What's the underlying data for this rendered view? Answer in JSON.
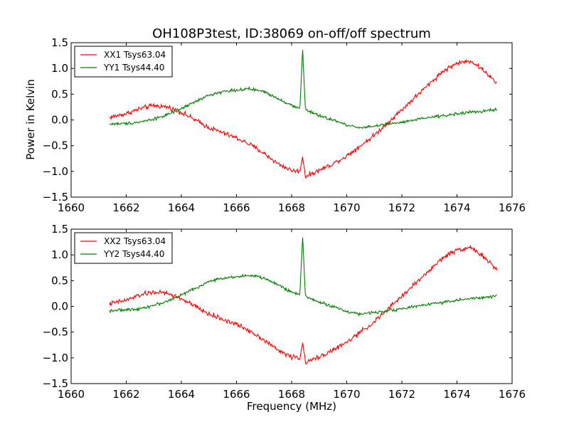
{
  "figure": {
    "title": "OH108P3test, ID:38069 on-off/off spectrum",
    "xlabel": "Frequency (MHz)",
    "ylabel": "Power in Kelvin",
    "colors": {
      "red": "#ff0000",
      "green": "#008000",
      "axes": "#000000",
      "background": "#ffffff"
    }
  },
  "chart_data": [
    {
      "type": "line",
      "title": "OH108P3test, ID:38069 on-off/off spectrum",
      "xlabel": "",
      "ylabel": "Power in Kelvin",
      "xlim": [
        1660,
        1676
      ],
      "ylim": [
        -1.5,
        1.5
      ],
      "xticks": [
        "1660",
        "1662",
        "1664",
        "1666",
        "1668",
        "1670",
        "1672",
        "1674",
        "1676"
      ],
      "yticks": [
        "1.5",
        "1.0",
        "0.5",
        "0.0",
        "−0.5",
        "−1.0",
        "−1.5"
      ],
      "legend_position": "top-left",
      "x": [
        1661.4,
        1662.0,
        1662.5,
        1663.0,
        1663.5,
        1664.0,
        1664.5,
        1665.0,
        1665.5,
        1666.0,
        1666.5,
        1667.0,
        1667.5,
        1668.0,
        1668.3,
        1668.4,
        1668.5,
        1668.7,
        1669.0,
        1669.5,
        1670.0,
        1670.5,
        1671.0,
        1671.5,
        1672.0,
        1672.5,
        1673.0,
        1673.5,
        1674.0,
        1674.5,
        1675.0,
        1675.45
      ],
      "series": [
        {
          "name": "XX1 Tsys63.04",
          "color": "#ff0000",
          "values": [
            0.05,
            0.12,
            0.22,
            0.28,
            0.25,
            0.15,
            0.0,
            -0.15,
            -0.25,
            -0.35,
            -0.48,
            -0.65,
            -0.85,
            -0.98,
            -1.0,
            -0.7,
            -1.1,
            -1.05,
            -0.98,
            -0.85,
            -0.7,
            -0.5,
            -0.3,
            -0.05,
            0.2,
            0.45,
            0.7,
            0.95,
            1.1,
            1.15,
            0.95,
            0.7
          ]
        },
        {
          "name": "YY1 Tsys44.40",
          "color": "#008000",
          "values": [
            -0.08,
            -0.07,
            -0.04,
            0.02,
            0.1,
            0.22,
            0.35,
            0.48,
            0.55,
            0.58,
            0.6,
            0.55,
            0.42,
            0.28,
            0.22,
            1.38,
            0.2,
            0.15,
            0.08,
            0.0,
            -0.1,
            -0.15,
            -0.12,
            -0.08,
            -0.05,
            0.0,
            0.05,
            0.08,
            0.12,
            0.15,
            0.17,
            0.2
          ]
        }
      ]
    },
    {
      "type": "line",
      "title": "",
      "xlabel": "Frequency (MHz)",
      "ylabel": "",
      "xlim": [
        1660,
        1676
      ],
      "ylim": [
        -1.5,
        1.5
      ],
      "xticks": [
        "1660",
        "1662",
        "1664",
        "1666",
        "1668",
        "1670",
        "1672",
        "1674",
        "1676"
      ],
      "yticks": [
        "1.5",
        "1.0",
        "0.5",
        "0.0",
        "−0.5",
        "−1.0",
        "−1.5"
      ],
      "legend_position": "top-left",
      "x": [
        1661.4,
        1662.0,
        1662.5,
        1663.0,
        1663.5,
        1664.0,
        1664.5,
        1665.0,
        1665.5,
        1666.0,
        1666.5,
        1667.0,
        1667.5,
        1668.0,
        1668.3,
        1668.4,
        1668.5,
        1668.7,
        1669.0,
        1669.5,
        1670.0,
        1670.5,
        1671.0,
        1671.5,
        1672.0,
        1672.5,
        1673.0,
        1673.5,
        1674.0,
        1674.5,
        1675.0,
        1675.45
      ],
      "series": [
        {
          "name": "XX2 Tsys63.04",
          "color": "#ff0000",
          "values": [
            0.05,
            0.12,
            0.22,
            0.28,
            0.25,
            0.15,
            0.0,
            -0.15,
            -0.25,
            -0.35,
            -0.48,
            -0.65,
            -0.85,
            -0.98,
            -1.0,
            -0.7,
            -1.1,
            -1.05,
            -0.98,
            -0.85,
            -0.7,
            -0.5,
            -0.3,
            -0.05,
            0.2,
            0.45,
            0.7,
            0.95,
            1.1,
            1.15,
            0.95,
            0.7
          ]
        },
        {
          "name": "YY2 Tsys44.40",
          "color": "#008000",
          "values": [
            -0.08,
            -0.07,
            -0.04,
            0.02,
            0.1,
            0.22,
            0.35,
            0.48,
            0.55,
            0.58,
            0.6,
            0.55,
            0.42,
            0.28,
            0.22,
            1.38,
            0.2,
            0.15,
            0.08,
            0.0,
            -0.1,
            -0.15,
            -0.12,
            -0.08,
            -0.05,
            0.0,
            0.05,
            0.08,
            0.12,
            0.15,
            0.17,
            0.2
          ]
        }
      ]
    }
  ]
}
